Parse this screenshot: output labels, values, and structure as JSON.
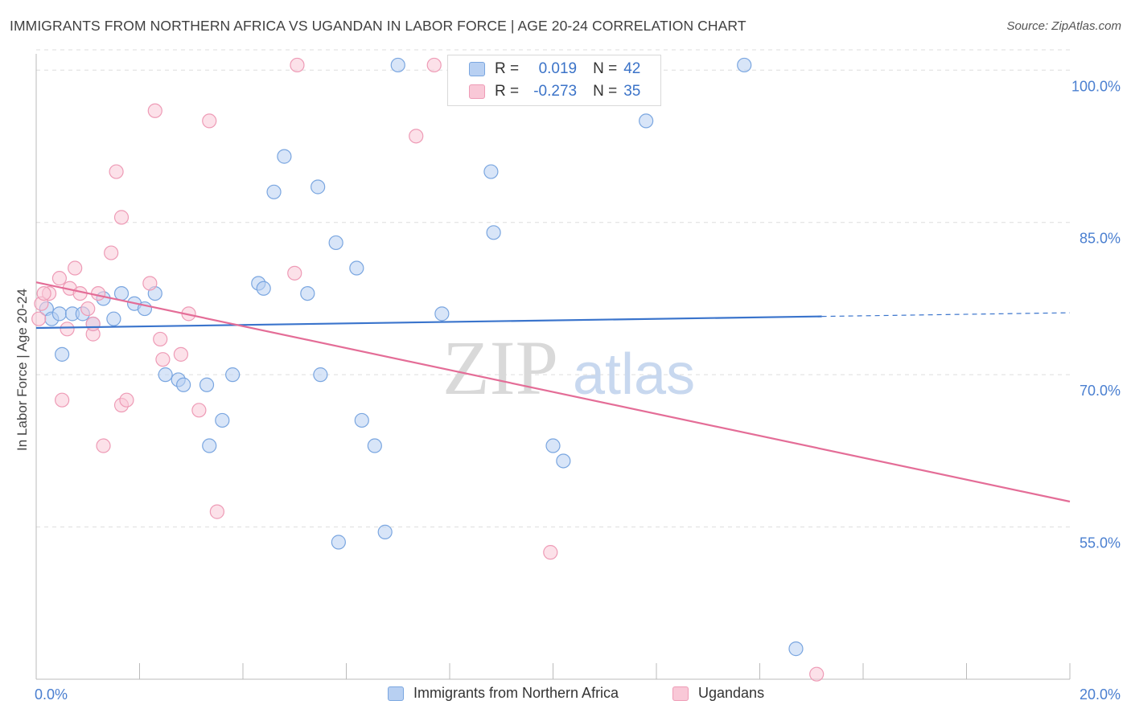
{
  "title": "IMMIGRANTS FROM NORTHERN AFRICA VS UGANDAN IN LABOR FORCE | AGE 20-24 CORRELATION CHART",
  "source": "Source: ZipAtlas.com",
  "watermark": {
    "zip": "ZIP",
    "atlas": "atlas"
  },
  "legend": {
    "rows": [
      {
        "r_label": "R =",
        "r_value": "0.019",
        "n_label": "N =",
        "n_value": "42"
      },
      {
        "r_label": "R =",
        "r_value": "-0.273",
        "n_label": "N =",
        "n_value": "35"
      }
    ]
  },
  "colors": {
    "blue_fill": "#b8d0f2",
    "blue_stroke": "#7aa6e0",
    "blue_line": "#3a74cc",
    "pink_fill": "#f9c8d7",
    "pink_stroke": "#ee9bb6",
    "pink_line": "#e46d97",
    "grid": "#dddddd",
    "tick_text": "#4a7fd0"
  },
  "chart_data": {
    "type": "scatter",
    "title": "IMMIGRANTS FROM NORTHERN AFRICA VS UGANDAN IN LABOR FORCE | AGE 20-24 CORRELATION CHART",
    "xlabel": "",
    "ylabel": "In Labor Force | Age 20-24",
    "xlim": [
      0,
      20
    ],
    "ylim": [
      40,
      102
    ],
    "x_tick_labels": [
      "0.0%",
      "20.0%"
    ],
    "y_ticks": [
      55,
      70,
      85,
      100
    ],
    "y_tick_labels": [
      "55.0%",
      "70.0%",
      "85.0%",
      "100.0%"
    ],
    "grid": true,
    "legend_position": "bottom",
    "series": [
      {
        "name": "Immigrants from Northern Africa",
        "color": "#b8d0f2",
        "points": [
          [
            0.2,
            76.5
          ],
          [
            0.3,
            75.5
          ],
          [
            0.45,
            76.0
          ],
          [
            0.5,
            72.0
          ],
          [
            0.7,
            76.0
          ],
          [
            0.9,
            76.0
          ],
          [
            1.1,
            75.0
          ],
          [
            1.3,
            77.5
          ],
          [
            1.5,
            75.5
          ],
          [
            1.65,
            78.0
          ],
          [
            1.9,
            77.0
          ],
          [
            2.1,
            76.5
          ],
          [
            2.3,
            78.0
          ],
          [
            2.5,
            70.0
          ],
          [
            2.75,
            69.5
          ],
          [
            2.85,
            69.0
          ],
          [
            3.3,
            69.0
          ],
          [
            3.35,
            63.0
          ],
          [
            3.6,
            65.5
          ],
          [
            3.8,
            70.0
          ],
          [
            4.3,
            79.0
          ],
          [
            4.4,
            78.5
          ],
          [
            4.6,
            88.0
          ],
          [
            4.8,
            91.5
          ],
          [
            5.25,
            78.0
          ],
          [
            5.45,
            88.5
          ],
          [
            5.5,
            70.0
          ],
          [
            5.8,
            83.0
          ],
          [
            5.85,
            53.5
          ],
          [
            6.2,
            80.5
          ],
          [
            6.3,
            65.5
          ],
          [
            6.55,
            63.0
          ],
          [
            6.75,
            54.5
          ],
          [
            7.0,
            100.5
          ],
          [
            7.85,
            76.0
          ],
          [
            8.8,
            90.0
          ],
          [
            8.85,
            84.0
          ],
          [
            10.0,
            63.0
          ],
          [
            10.2,
            61.5
          ],
          [
            11.8,
            95.0
          ],
          [
            13.7,
            100.5
          ],
          [
            14.7,
            43.0
          ]
        ]
      },
      {
        "name": "Ugandans",
        "color": "#f9c8d7",
        "points": [
          [
            0.05,
            75.5
          ],
          [
            0.1,
            77.0
          ],
          [
            0.25,
            78.0
          ],
          [
            0.45,
            79.5
          ],
          [
            0.5,
            67.5
          ],
          [
            0.6,
            74.5
          ],
          [
            0.65,
            78.5
          ],
          [
            0.75,
            80.5
          ],
          [
            0.85,
            78.0
          ],
          [
            1.0,
            76.5
          ],
          [
            1.1,
            74.0
          ],
          [
            1.1,
            75.0
          ],
          [
            1.2,
            78.0
          ],
          [
            1.3,
            63.0
          ],
          [
            1.45,
            82.0
          ],
          [
            1.55,
            90.0
          ],
          [
            1.65,
            85.5
          ],
          [
            1.65,
            67.0
          ],
          [
            1.75,
            67.5
          ],
          [
            2.2,
            79.0
          ],
          [
            2.3,
            96.0
          ],
          [
            2.4,
            73.5
          ],
          [
            2.45,
            71.5
          ],
          [
            2.8,
            72.0
          ],
          [
            2.95,
            76.0
          ],
          [
            3.15,
            66.5
          ],
          [
            3.35,
            95.0
          ],
          [
            3.5,
            56.5
          ],
          [
            5.0,
            80.0
          ],
          [
            5.05,
            100.5
          ],
          [
            7.35,
            93.5
          ],
          [
            7.7,
            100.5
          ],
          [
            9.95,
            52.5
          ],
          [
            15.1,
            40.5
          ],
          [
            0.15,
            78.0
          ]
        ]
      }
    ],
    "trend_lines": [
      {
        "series": "Immigrants from Northern Africa",
        "x": [
          0,
          20
        ],
        "y": [
          74.6,
          76.1
        ],
        "solid_until_x": 15.2
      },
      {
        "series": "Ugandans",
        "x": [
          0,
          20
        ],
        "y": [
          79.1,
          57.5
        ]
      }
    ]
  }
}
